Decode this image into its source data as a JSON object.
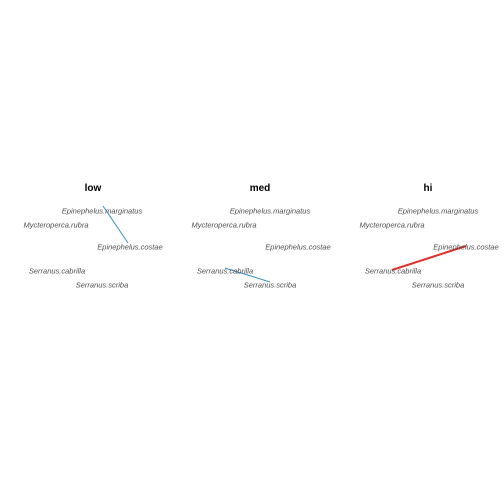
{
  "colors": {
    "weak_edge": "#3a8fc4",
    "strong_edge": "#e0302a",
    "label": "#4d4d4d",
    "title": "#000000"
  },
  "panels": [
    {
      "title": "low",
      "nodes": [
        "Epinephelus.marginatus",
        "Mycteroperca.rubra",
        "Epinephelus.costae",
        "Serranus.cabrilla",
        "Serranus.scriba"
      ],
      "edges": [
        {
          "from": "Epinephelus.marginatus",
          "to": "Epinephelus.costae",
          "type": "weak"
        }
      ]
    },
    {
      "title": "med",
      "nodes": [
        "Epinephelus.marginatus",
        "Mycteroperca.rubra",
        "Epinephelus.costae",
        "Serranus.cabrilla",
        "Serranus.scriba"
      ],
      "edges": [
        {
          "from": "Serranus.cabrilla",
          "to": "Serranus.scriba",
          "type": "weak"
        }
      ]
    },
    {
      "title": "hi",
      "nodes": [
        "Epinephelus.marginatus",
        "Mycteroperca.rubra",
        "Epinephelus.costae",
        "Serranus.cabrilla",
        "Serranus.scriba"
      ],
      "edges": [
        {
          "from": "Serranus.cabrilla",
          "to": "Epinephelus.costae",
          "type": "strong"
        }
      ]
    }
  ]
}
